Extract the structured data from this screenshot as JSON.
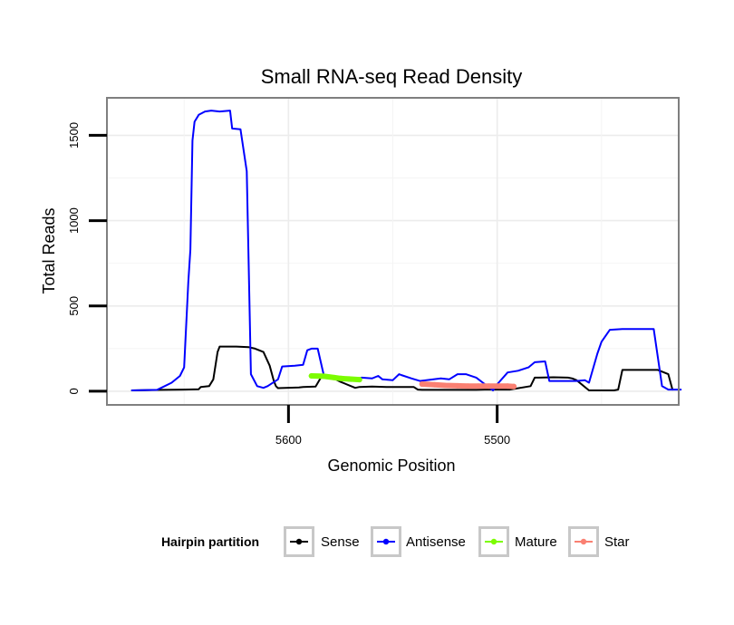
{
  "chart_data": {
    "type": "line",
    "title": "Small RNA-seq Read Density",
    "xlabel": "Genomic Position",
    "ylabel": "Total Reads",
    "xlim": [
      5687,
      5413
    ],
    "ylim": [
      -80,
      1720
    ],
    "x_reversed": true,
    "grid": true,
    "x_ticks": [
      {
        "value": 5600,
        "label": "5600"
      },
      {
        "value": 5500,
        "label": "5500"
      }
    ],
    "y_ticks": [
      {
        "value": 0,
        "label": "0"
      },
      {
        "value": 500,
        "label": "500"
      },
      {
        "value": 1000,
        "label": "1000"
      },
      {
        "value": 1500,
        "label": "1500"
      }
    ],
    "legend": {
      "title": "Hairpin partition",
      "position": "bottom",
      "items": [
        {
          "name": "Sense",
          "color": "#000000"
        },
        {
          "name": "Antisense",
          "color": "#0000ff"
        },
        {
          "name": "Mature",
          "color": "#7cfc00"
        },
        {
          "name": "Star",
          "color": "#fa8072"
        }
      ]
    },
    "series": [
      {
        "name": "Sense",
        "color": "#000000",
        "width": 2,
        "markers": false,
        "x": [
          5675,
          5660,
          5650,
          5643,
          5642,
          5638,
          5636,
          5634,
          5633,
          5625,
          5619,
          5616,
          5612,
          5609,
          5607,
          5606,
          5605,
          5595,
          5593,
          5587,
          5584,
          5581,
          5579,
          5575,
          5570,
          5568,
          5566,
          5560,
          5553,
          5550,
          5546,
          5540,
          5538,
          5536,
          5525,
          5514,
          5510,
          5506,
          5500,
          5494,
          5484,
          5482,
          5480,
          5473,
          5466,
          5464,
          5462,
          5456,
          5444,
          5442,
          5440,
          5423,
          5418,
          5416
        ],
        "y": [
          5,
          8,
          10,
          12,
          25,
          30,
          70,
          230,
          262,
          262,
          258,
          250,
          230,
          150,
          60,
          30,
          18,
          22,
          25,
          28,
          90,
          88,
          80,
          55,
          30,
          20,
          25,
          27,
          25,
          25,
          25,
          25,
          10,
          8,
          8,
          8,
          8,
          10,
          10,
          10,
          30,
          80,
          80,
          82,
          80,
          75,
          65,
          5,
          5,
          10,
          125,
          125,
          100,
          10
        ]
      },
      {
        "name": "Antisense",
        "color": "#0000ff",
        "width": 2,
        "markers": false,
        "x": [
          5675,
          5663,
          5661,
          5656,
          5652,
          5650,
          5648,
          5647,
          5646,
          5645,
          5643,
          5640,
          5637,
          5633,
          5628,
          5627,
          5623,
          5620,
          5619,
          5618,
          5615,
          5612,
          5610,
          5605,
          5603,
          5597,
          5593,
          5591,
          5589,
          5586,
          5583,
          5579,
          5575,
          5570,
          5565,
          5560,
          5557,
          5555,
          5550,
          5547,
          5546,
          5541,
          5537,
          5527,
          5523,
          5519,
          5515,
          5510,
          5502,
          5500,
          5495,
          5490,
          5485,
          5482,
          5477,
          5475,
          5469,
          5462,
          5458,
          5456,
          5452,
          5450,
          5446,
          5440,
          5425,
          5421,
          5418,
          5412
        ],
        "y": [
          5,
          8,
          20,
          50,
          90,
          140,
          640,
          830,
          1470,
          1580,
          1620,
          1640,
          1645,
          1640,
          1645,
          1540,
          1535,
          1290,
          700,
          100,
          30,
          20,
          30,
          70,
          145,
          150,
          155,
          240,
          250,
          250,
          90,
          85,
          70,
          60,
          80,
          75,
          90,
          70,
          65,
          100,
          95,
          75,
          60,
          75,
          70,
          100,
          100,
          80,
          5,
          40,
          110,
          120,
          140,
          170,
          175,
          60,
          60,
          60,
          65,
          50,
          220,
          290,
          360,
          365,
          365,
          30,
          10,
          10
        ]
      },
      {
        "name": "Mature",
        "color": "#7cfc00",
        "width": 6,
        "markers": true,
        "marker_radius": 3,
        "x": [
          5589,
          5583,
          5578,
          5575,
          5571,
          5566
        ],
        "y": [
          90,
          88,
          80,
          75,
          72,
          68
        ]
      },
      {
        "name": "Star",
        "color": "#fa8072",
        "width": 6,
        "markers": true,
        "marker_radius": 3,
        "x": [
          5536,
          5530,
          5525,
          5519,
          5514,
          5509,
          5504,
          5499,
          5495,
          5492
        ],
        "y": [
          42,
          38,
          34,
          32,
          30,
          30,
          30,
          30,
          30,
          28
        ]
      }
    ]
  }
}
